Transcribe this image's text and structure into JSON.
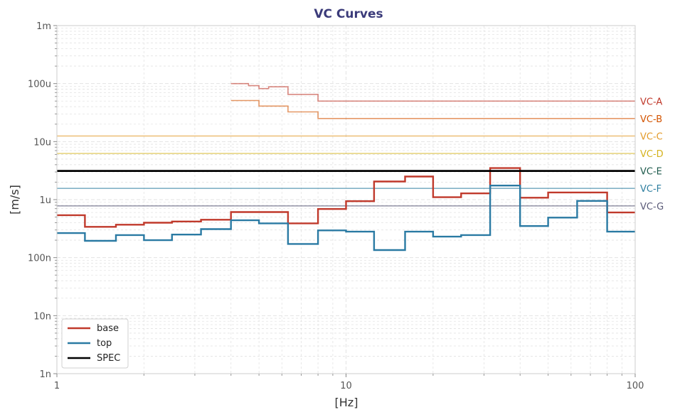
{
  "chart_data": {
    "type": "line",
    "title": "VC Curves",
    "xlabel": "[Hz]",
    "ylabel": "[m/s]",
    "x_scale": "log",
    "y_scale": "log",
    "xlim": [
      1,
      100
    ],
    "ylim": [
      1e-09,
      0.001
    ],
    "x_ticks": [
      {
        "value": 1,
        "label": "1"
      },
      {
        "value": 10,
        "label": "10"
      },
      {
        "value": 100,
        "label": "100"
      }
    ],
    "y_ticks": [
      {
        "value": 1e-09,
        "label": "1n"
      },
      {
        "value": 1e-08,
        "label": "10n"
      },
      {
        "value": 1e-07,
        "label": "100n"
      },
      {
        "value": 1e-06,
        "label": "1u"
      },
      {
        "value": 1e-05,
        "label": "10u"
      },
      {
        "value": 0.0001,
        "label": "100u"
      },
      {
        "value": 0.001,
        "label": "1m"
      }
    ],
    "grid": true,
    "legend_position": "bottom-left",
    "colors": {
      "title": "#3b3b7a",
      "base": "#c0392b",
      "top": "#2a7aa3",
      "spec": "#000000",
      "frame": "#cccccc",
      "grid": "#e3e3e3"
    },
    "series": [
      {
        "name": "base",
        "color": "#c0392b",
        "points": [
          [
            1,
            5.4e-07
          ],
          [
            1.25,
            5.4e-07
          ],
          [
            1.25,
            3.4e-07
          ],
          [
            1.6,
            3.4e-07
          ],
          [
            1.6,
            3.7e-07
          ],
          [
            2,
            3.7e-07
          ],
          [
            2,
            4e-07
          ],
          [
            2.5,
            4e-07
          ],
          [
            2.5,
            4.2e-07
          ],
          [
            3.15,
            4.2e-07
          ],
          [
            3.15,
            4.5e-07
          ],
          [
            4,
            4.5e-07
          ],
          [
            4,
            6.1e-07
          ],
          [
            6.3,
            6.1e-07
          ],
          [
            6.3,
            3.9e-07
          ],
          [
            8,
            3.9e-07
          ],
          [
            8,
            6.9e-07
          ],
          [
            10,
            6.9e-07
          ],
          [
            10,
            9.4e-07
          ],
          [
            12.5,
            9.4e-07
          ],
          [
            12.5,
            2.05e-06
          ],
          [
            16,
            2.05e-06
          ],
          [
            16,
            2.5e-06
          ],
          [
            20,
            2.5e-06
          ],
          [
            20,
            1.1e-06
          ],
          [
            25,
            1.1e-06
          ],
          [
            25,
            1.28e-06
          ],
          [
            31.5,
            1.28e-06
          ],
          [
            31.5,
            3.5e-06
          ],
          [
            40,
            3.5e-06
          ],
          [
            40,
            1.08e-06
          ],
          [
            50,
            1.08e-06
          ],
          [
            50,
            1.33e-06
          ],
          [
            80,
            1.33e-06
          ],
          [
            80,
            6e-07
          ],
          [
            100,
            6e-07
          ]
        ]
      },
      {
        "name": "top",
        "color": "#2a7aa3",
        "points": [
          [
            1,
            2.65e-07
          ],
          [
            1.25,
            2.65e-07
          ],
          [
            1.25,
            1.95e-07
          ],
          [
            1.6,
            1.95e-07
          ],
          [
            1.6,
            2.45e-07
          ],
          [
            2,
            2.45e-07
          ],
          [
            2,
            2e-07
          ],
          [
            2.5,
            2e-07
          ],
          [
            2.5,
            2.5e-07
          ],
          [
            3.15,
            2.5e-07
          ],
          [
            3.15,
            3.1e-07
          ],
          [
            4,
            3.1e-07
          ],
          [
            4,
            4.4e-07
          ],
          [
            5,
            4.4e-07
          ],
          [
            5,
            3.9e-07
          ],
          [
            6.3,
            3.9e-07
          ],
          [
            6.3,
            1.72e-07
          ],
          [
            8,
            1.72e-07
          ],
          [
            8,
            2.95e-07
          ],
          [
            10,
            2.95e-07
          ],
          [
            10,
            2.8e-07
          ],
          [
            12.5,
            2.8e-07
          ],
          [
            12.5,
            1.35e-07
          ],
          [
            16,
            1.35e-07
          ],
          [
            16,
            2.8e-07
          ],
          [
            20,
            2.8e-07
          ],
          [
            20,
            2.3e-07
          ],
          [
            25,
            2.3e-07
          ],
          [
            25,
            2.45e-07
          ],
          [
            31.5,
            2.45e-07
          ],
          [
            31.5,
            1.75e-06
          ],
          [
            40,
            1.75e-06
          ],
          [
            40,
            3.5e-07
          ],
          [
            50,
            3.5e-07
          ],
          [
            50,
            4.9e-07
          ],
          [
            63,
            4.9e-07
          ],
          [
            63,
            9.5e-07
          ],
          [
            80,
            9.5e-07
          ],
          [
            80,
            2.8e-07
          ],
          [
            100,
            2.8e-07
          ]
        ]
      },
      {
        "name": "SPEC",
        "color": "#000000",
        "points": [
          [
            1,
            3.125e-06
          ],
          [
            100,
            3.125e-06
          ]
        ]
      }
    ],
    "reference_curves": [
      {
        "name": "VC-A",
        "color": "#c0392b",
        "points": [
          [
            4,
            0.0001
          ],
          [
            4.6,
            0.0001
          ],
          [
            4.6,
            9.2e-05
          ],
          [
            5,
            9.2e-05
          ],
          [
            5,
            8.2e-05
          ],
          [
            5.4,
            8.2e-05
          ],
          [
            5.4,
            8.8e-05
          ],
          [
            6.3,
            8.8e-05
          ],
          [
            6.3,
            6.5e-05
          ],
          [
            8,
            6.5e-05
          ],
          [
            8,
            5e-05
          ],
          [
            100,
            5e-05
          ]
        ]
      },
      {
        "name": "VC-B",
        "color": "#d35400",
        "points": [
          [
            4,
            5.1e-05
          ],
          [
            5,
            5.1e-05
          ],
          [
            5,
            4.1e-05
          ],
          [
            6.3,
            4.1e-05
          ],
          [
            6.3,
            3.25e-05
          ],
          [
            8,
            3.25e-05
          ],
          [
            8,
            2.5e-05
          ],
          [
            100,
            2.5e-05
          ]
        ]
      },
      {
        "name": "VC-C",
        "color": "#e39b2a",
        "points": [
          [
            1,
            1.25e-05
          ],
          [
            100,
            1.25e-05
          ]
        ]
      },
      {
        "name": "VC-D",
        "color": "#d4b21c",
        "points": [
          [
            1,
            6.25e-06
          ],
          [
            100,
            6.25e-06
          ]
        ]
      },
      {
        "name": "VC-E",
        "color": "#1e5a4c",
        "points": [
          [
            1,
            3.12e-06
          ],
          [
            100,
            3.12e-06
          ]
        ]
      },
      {
        "name": "VC-F",
        "color": "#2e7fa0",
        "points": [
          [
            1,
            1.56e-06
          ],
          [
            100,
            1.56e-06
          ]
        ]
      },
      {
        "name": "VC-G",
        "color": "#5a5a78",
        "points": [
          [
            1,
            7.8e-07
          ],
          [
            100,
            7.8e-07
          ]
        ]
      }
    ]
  }
}
